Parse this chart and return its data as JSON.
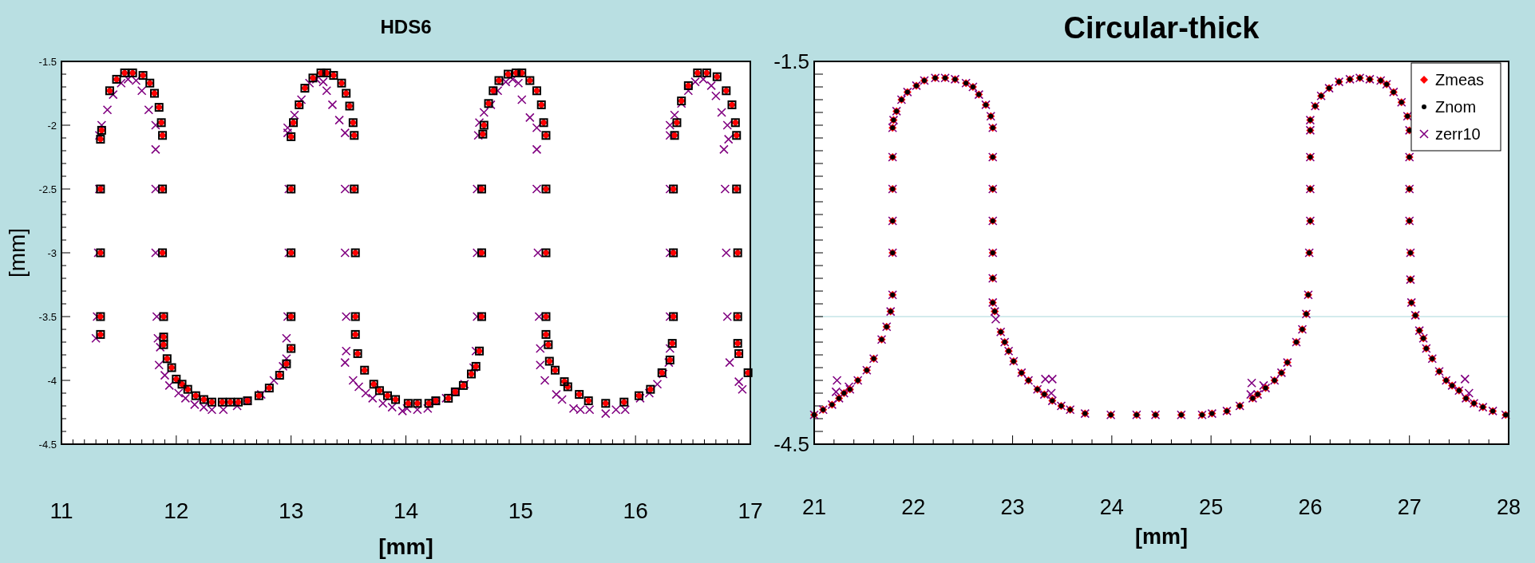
{
  "chart_data": [
    {
      "type": "scatter",
      "title": "HDS6",
      "xlabel": "[mm]",
      "ylabel": "[mm]",
      "xlim": [
        11,
        17
      ],
      "ylim": [
        -4.5,
        -1.5
      ],
      "xticks": [
        11,
        {
          "value": 11.1,
          "label": null
        },
        {
          "value": 11.2,
          "label": null
        },
        {
          "value": 11.3,
          "label": null
        },
        {
          "value": 11.4,
          "label": null
        },
        {
          "value": 11.5,
          "label": null
        },
        {
          "value": 11.6,
          "label": null
        },
        {
          "value": 11.7,
          "label": null
        },
        {
          "value": 11.8,
          "label": null
        },
        {
          "value": 11.9,
          "label": null
        },
        12,
        {
          "value": 12.1,
          "label": null
        },
        {
          "value": 12.2,
          "label": null
        },
        {
          "value": 12.3,
          "label": null
        },
        {
          "value": 12.4,
          "label": null
        },
        {
          "value": 12.5,
          "label": null
        },
        {
          "value": 12.6,
          "label": null
        },
        {
          "value": 12.7,
          "label": null
        },
        {
          "value": 12.8,
          "label": null
        },
        {
          "value": 12.9,
          "label": null
        },
        13,
        {
          "value": 13.1,
          "label": null
        },
        {
          "value": 13.2,
          "label": null
        },
        {
          "value": 13.3,
          "label": null
        },
        {
          "value": 13.4,
          "label": null
        },
        {
          "value": 13.5,
          "label": null
        },
        {
          "value": 13.6,
          "label": null
        },
        {
          "value": 13.7,
          "label": null
        },
        {
          "value": 13.8,
          "label": null
        },
        {
          "value": 13.9,
          "label": null
        },
        14,
        {
          "value": 14.1,
          "label": null
        },
        {
          "value": 14.2,
          "label": null
        },
        {
          "value": 14.3,
          "label": null
        },
        {
          "value": 14.4,
          "label": null
        },
        {
          "value": 14.5,
          "label": null
        },
        {
          "value": 14.6,
          "label": null
        },
        {
          "value": 14.7,
          "label": null
        },
        {
          "value": 14.8,
          "label": null
        },
        {
          "value": 14.9,
          "label": null
        },
        15,
        {
          "value": 15.1,
          "label": null
        },
        {
          "value": 15.2,
          "label": null
        },
        {
          "value": 15.3,
          "label": null
        },
        {
          "value": 15.4,
          "label": null
        },
        {
          "value": 15.5,
          "label": null
        },
        {
          "value": 15.6,
          "label": null
        },
        {
          "value": 15.7,
          "label": null
        },
        {
          "value": 15.8,
          "label": null
        },
        {
          "value": 15.9,
          "label": null
        },
        16,
        {
          "value": 16.1,
          "label": null
        },
        {
          "value": 16.2,
          "label": null
        },
        {
          "value": 16.3,
          "label": null
        },
        {
          "value": 16.4,
          "label": null
        },
        {
          "value": 16.5,
          "label": null
        },
        {
          "value": 16.6,
          "label": null
        },
        {
          "value": 16.7,
          "label": null
        },
        {
          "value": 16.8,
          "label": null
        },
        {
          "value": 16.9,
          "label": null
        },
        17
      ],
      "yticks": [
        -4.5,
        {
          "value": -4.4,
          "label": null
        },
        {
          "value": -4.3,
          "label": null
        },
        {
          "value": -4.2,
          "label": null
        },
        {
          "value": -4.1,
          "label": null
        },
        -4,
        {
          "value": -3.9,
          "label": null
        },
        {
          "value": -3.8,
          "label": null
        },
        {
          "value": -3.7,
          "label": null
        },
        {
          "value": -3.6,
          "label": null
        },
        -3.5,
        {
          "value": -3.4,
          "label": null
        },
        {
          "value": -3.3,
          "label": null
        },
        {
          "value": -3.2,
          "label": null
        },
        {
          "value": -3.1,
          "label": null
        },
        -3,
        {
          "value": -2.9,
          "label": null
        },
        {
          "value": -2.8,
          "label": null
        },
        {
          "value": -2.7,
          "label": null
        },
        {
          "value": -2.6,
          "label": null
        },
        -2.5,
        {
          "value": -2.4,
          "label": null
        },
        {
          "value": -2.3,
          "label": null
        },
        {
          "value": -2.2,
          "label": null
        },
        {
          "value": -2.1,
          "label": null
        },
        -2,
        {
          "value": -1.9,
          "label": null
        },
        {
          "value": -1.8,
          "label": null
        },
        {
          "value": -1.7,
          "label": null
        },
        {
          "value": -1.6,
          "label": null
        },
        -1.5
      ],
      "grid": false,
      "legend": false,
      "series": [
        {
          "color": "#ff0000",
          "marker": "diamond",
          "x": [
            11.34,
            11.34,
            11.34,
            11.34,
            11.34,
            11.35,
            11.42,
            11.48,
            11.55,
            11.62,
            11.71,
            11.77,
            11.81,
            11.85,
            11.87,
            11.88,
            11.88,
            11.88,
            11.89,
            11.89,
            11.89,
            11.92,
            11.96,
            12.0,
            12.05,
            12.1,
            12.17,
            12.24,
            12.31,
            12.4,
            12.47,
            12.54,
            12.62,
            12.72,
            12.81,
            12.9,
            12.96,
            13.0,
            13.0,
            13.0,
            13.0,
            13.0,
            13.02,
            13.07,
            13.12,
            13.19,
            13.26,
            13.31,
            13.37,
            13.44,
            13.48,
            13.51,
            13.54,
            13.55,
            13.55,
            13.56,
            13.56,
            13.56,
            13.58,
            13.64,
            13.72,
            13.77,
            13.84,
            13.91,
            14.02,
            14.1,
            14.2,
            14.26,
            14.37,
            14.43,
            14.5,
            14.57,
            14.61,
            14.64,
            14.66,
            14.66,
            14.66,
            14.67,
            14.68,
            14.72,
            14.76,
            14.81,
            14.89,
            14.96,
            15.01,
            15.08,
            15.14,
            15.18,
            15.2,
            15.22,
            15.22,
            15.22,
            15.22,
            15.22,
            15.24,
            15.25,
            15.3,
            15.38,
            15.41,
            15.51,
            15.59,
            15.74,
            15.9,
            16.03,
            16.13,
            16.23,
            16.3,
            16.32,
            16.33,
            16.33,
            16.33,
            16.34,
            16.36,
            16.4,
            16.46,
            16.54,
            16.62,
            16.71,
            16.79,
            16.84,
            16.87,
            16.88,
            16.88,
            16.89,
            16.89,
            16.89,
            16.9,
            16.98
          ],
          "values": [
            -3.64,
            -3.5,
            -3.0,
            -2.5,
            -2.11,
            -2.04,
            -1.73,
            -1.64,
            -1.59,
            -1.59,
            -1.61,
            -1.67,
            -1.75,
            -1.86,
            -1.98,
            -2.08,
            -2.5,
            -3.0,
            -3.5,
            -3.66,
            -3.72,
            -3.83,
            -3.9,
            -3.99,
            -4.03,
            -4.07,
            -4.12,
            -4.15,
            -4.17,
            -4.17,
            -4.17,
            -4.17,
            -4.16,
            -4.12,
            -4.06,
            -3.96,
            -3.87,
            -3.75,
            -3.5,
            -3.0,
            -2.5,
            -2.09,
            -1.98,
            -1.84,
            -1.71,
            -1.63,
            -1.59,
            -1.59,
            -1.61,
            -1.67,
            -1.75,
            -1.85,
            -1.98,
            -2.08,
            -2.5,
            -3.0,
            -3.5,
            -3.64,
            -3.79,
            -3.92,
            -4.03,
            -4.08,
            -4.12,
            -4.15,
            -4.18,
            -4.18,
            -4.18,
            -4.16,
            -4.14,
            -4.09,
            -4.04,
            -3.95,
            -3.89,
            -3.77,
            -3.5,
            -3.0,
            -2.5,
            -2.07,
            -2.0,
            -1.83,
            -1.73,
            -1.65,
            -1.6,
            -1.59,
            -1.59,
            -1.65,
            -1.73,
            -1.84,
            -1.98,
            -2.08,
            -2.5,
            -3.0,
            -3.5,
            -3.64,
            -3.72,
            -3.85,
            -3.92,
            -4.01,
            -4.05,
            -4.11,
            -4.16,
            -4.18,
            -4.17,
            -4.12,
            -4.07,
            -3.94,
            -3.84,
            -3.71,
            -3.5,
            -3.0,
            -2.5,
            -2.08,
            -1.98,
            -1.81,
            -1.69,
            -1.59,
            -1.59,
            -1.62,
            -1.73,
            -1.84,
            -1.98,
            -2.08,
            -2.5,
            -3.0,
            -3.5,
            -3.71,
            -3.79,
            -3.94
          ]
        },
        {
          "color": "#000000",
          "marker": "square",
          "x": [
            11.34,
            11.34,
            11.34,
            11.34,
            11.34,
            11.35,
            11.42,
            11.48,
            11.55,
            11.62,
            11.71,
            11.77,
            11.81,
            11.85,
            11.87,
            11.88,
            11.88,
            11.88,
            11.89,
            11.89,
            11.89,
            11.92,
            11.96,
            12.0,
            12.05,
            12.1,
            12.17,
            12.24,
            12.31,
            12.4,
            12.47,
            12.54,
            12.62,
            12.72,
            12.81,
            12.9,
            12.96,
            13.0,
            13.0,
            13.0,
            13.0,
            13.0,
            13.02,
            13.07,
            13.12,
            13.19,
            13.26,
            13.31,
            13.37,
            13.44,
            13.48,
            13.51,
            13.54,
            13.55,
            13.55,
            13.56,
            13.56,
            13.56,
            13.58,
            13.64,
            13.72,
            13.77,
            13.84,
            13.91,
            14.02,
            14.1,
            14.2,
            14.26,
            14.37,
            14.43,
            14.5,
            14.57,
            14.61,
            14.64,
            14.66,
            14.66,
            14.66,
            14.67,
            14.68,
            14.72,
            14.76,
            14.81,
            14.89,
            14.96,
            15.01,
            15.08,
            15.14,
            15.18,
            15.2,
            15.22,
            15.22,
            15.22,
            15.22,
            15.22,
            15.24,
            15.25,
            15.3,
            15.38,
            15.41,
            15.51,
            15.59,
            15.74,
            15.9,
            16.03,
            16.13,
            16.23,
            16.3,
            16.32,
            16.33,
            16.33,
            16.33,
            16.34,
            16.36,
            16.4,
            16.46,
            16.54,
            16.62,
            16.71,
            16.79,
            16.84,
            16.87,
            16.88,
            16.88,
            16.89,
            16.89,
            16.89,
            16.9,
            16.98
          ],
          "values": [
            -3.64,
            -3.5,
            -3.0,
            -2.5,
            -2.11,
            -2.04,
            -1.73,
            -1.64,
            -1.59,
            -1.59,
            -1.61,
            -1.67,
            -1.75,
            -1.86,
            -1.98,
            -2.08,
            -2.5,
            -3.0,
            -3.5,
            -3.66,
            -3.72,
            -3.83,
            -3.9,
            -3.99,
            -4.03,
            -4.07,
            -4.12,
            -4.15,
            -4.17,
            -4.17,
            -4.17,
            -4.17,
            -4.16,
            -4.12,
            -4.06,
            -3.96,
            -3.87,
            -3.75,
            -3.5,
            -3.0,
            -2.5,
            -2.09,
            -1.98,
            -1.84,
            -1.71,
            -1.63,
            -1.59,
            -1.59,
            -1.61,
            -1.67,
            -1.75,
            -1.85,
            -1.98,
            -2.08,
            -2.5,
            -3.0,
            -3.5,
            -3.64,
            -3.79,
            -3.92,
            -4.03,
            -4.08,
            -4.12,
            -4.15,
            -4.18,
            -4.18,
            -4.18,
            -4.16,
            -4.14,
            -4.09,
            -4.04,
            -3.95,
            -3.89,
            -3.77,
            -3.5,
            -3.0,
            -2.5,
            -2.07,
            -2.0,
            -1.83,
            -1.73,
            -1.65,
            -1.6,
            -1.59,
            -1.59,
            -1.65,
            -1.73,
            -1.84,
            -1.98,
            -2.08,
            -2.5,
            -3.0,
            -3.5,
            -3.64,
            -3.72,
            -3.85,
            -3.92,
            -4.01,
            -4.05,
            -4.11,
            -4.16,
            -4.18,
            -4.17,
            -4.12,
            -4.07,
            -3.94,
            -3.84,
            -3.71,
            -3.5,
            -3.0,
            -2.5,
            -2.08,
            -1.98,
            -1.81,
            -1.69,
            -1.59,
            -1.59,
            -1.62,
            -1.73,
            -1.84,
            -1.98,
            -2.08,
            -2.5,
            -3.0,
            -3.5,
            -3.71,
            -3.79,
            -3.94
          ]
        },
        {
          "color": "#800080",
          "marker": "cross",
          "x": [
            11.3,
            11.31,
            11.32,
            11.33,
            11.33,
            11.35,
            11.4,
            11.45,
            11.52,
            11.58,
            11.65,
            11.7,
            11.76,
            11.82,
            11.82,
            11.82,
            11.82,
            11.83,
            11.84,
            11.86,
            11.85,
            11.9,
            11.94,
            12.02,
            12.08,
            12.16,
            12.24,
            12.31,
            12.41,
            12.53,
            12.62,
            12.74,
            12.85,
            12.93,
            12.96,
            12.96,
            12.97,
            12.98,
            12.98,
            12.97,
            12.97,
            13.03,
            13.09,
            13.16,
            13.22,
            13.28,
            13.31,
            13.36,
            13.42,
            13.47,
            13.47,
            13.47,
            13.48,
            13.48,
            13.47,
            13.54,
            13.59,
            13.65,
            13.71,
            13.8,
            13.88,
            13.97,
            14.01,
            14.1,
            14.19,
            14.26,
            14.35,
            14.43,
            14.51,
            14.59,
            14.61,
            14.62,
            14.62,
            14.62,
            14.63,
            14.64,
            14.68,
            14.74,
            14.8,
            14.87,
            14.93,
            14.98,
            15.01,
            15.08,
            15.14,
            15.14,
            15.14,
            15.15,
            15.16,
            15.17,
            15.17,
            15.21,
            15.31,
            15.36,
            15.46,
            15.52,
            15.6,
            15.74,
            15.83,
            15.91,
            16.04,
            16.12,
            16.19,
            16.24,
            16.29,
            16.3,
            16.3,
            16.3,
            16.3,
            16.3,
            16.3,
            16.34,
            16.4,
            16.46,
            16.52,
            16.59,
            16.66,
            16.7,
            16.75,
            16.8,
            16.81,
            16.77,
            16.78,
            16.79,
            16.8,
            16.82,
            16.9,
            16.93
          ],
          "values": [
            -3.67,
            -3.5,
            -3.0,
            -2.5,
            -2.08,
            -2.0,
            -1.88,
            -1.76,
            -1.67,
            -1.64,
            -1.65,
            -1.73,
            -1.88,
            -2.0,
            -2.19,
            -2.5,
            -3.0,
            -3.5,
            -3.67,
            -3.74,
            -3.88,
            -3.96,
            -4.04,
            -4.1,
            -4.14,
            -4.19,
            -4.21,
            -4.23,
            -4.23,
            -4.2,
            -4.16,
            -4.11,
            -4.0,
            -3.89,
            -3.83,
            -3.67,
            -3.5,
            -3.0,
            -2.5,
            -2.06,
            -2.02,
            -1.92,
            -1.8,
            -1.67,
            -1.64,
            -1.66,
            -1.73,
            -1.84,
            -1.96,
            -2.06,
            -2.5,
            -3.0,
            -3.5,
            -3.77,
            -3.86,
            -4.0,
            -4.05,
            -4.1,
            -4.14,
            -4.18,
            -4.21,
            -4.24,
            -4.22,
            -4.23,
            -4.22,
            -4.16,
            -4.14,
            -4.09,
            -4.03,
            -3.9,
            -3.77,
            -3.5,
            -3.0,
            -2.5,
            -2.08,
            -1.98,
            -1.9,
            -1.84,
            -1.73,
            -1.66,
            -1.64,
            -1.67,
            -1.8,
            -1.94,
            -2.02,
            -2.19,
            -2.5,
            -3.0,
            -3.5,
            -3.75,
            -3.88,
            -4.0,
            -4.11,
            -4.15,
            -4.22,
            -4.23,
            -4.23,
            -4.26,
            -4.23,
            -4.23,
            -4.14,
            -4.1,
            -4.03,
            -3.95,
            -3.86,
            -3.75,
            -3.5,
            -3.0,
            -2.5,
            -2.08,
            -2.0,
            -1.92,
            -1.83,
            -1.73,
            -1.66,
            -1.64,
            -1.69,
            -1.77,
            -1.9,
            -2.0,
            -2.11,
            -2.19,
            -2.5,
            -3.0,
            -3.5,
            -3.86,
            -4.01,
            -4.07
          ]
        }
      ]
    },
    {
      "type": "scatter",
      "title": "Circular-thick",
      "xlabel": "[mm]",
      "xlim": [
        21,
        28
      ],
      "ylim": [
        -4.5,
        -1.5
      ],
      "xticks": [
        21,
        {
          "value": 21.2,
          "label": null
        },
        {
          "value": 21.4,
          "label": null
        },
        {
          "value": 21.6,
          "label": null
        },
        {
          "value": 21.8,
          "label": null
        },
        22,
        {
          "value": 22.2,
          "label": null
        },
        {
          "value": 22.4,
          "label": null
        },
        {
          "value": 22.6,
          "label": null
        },
        {
          "value": 22.8,
          "label": null
        },
        23,
        {
          "value": 23.2,
          "label": null
        },
        {
          "value": 23.4,
          "label": null
        },
        {
          "value": 23.6,
          "label": null
        },
        {
          "value": 23.8,
          "label": null
        },
        24,
        {
          "value": 24.2,
          "label": null
        },
        {
          "value": 24.4,
          "label": null
        },
        {
          "value": 24.6,
          "label": null
        },
        {
          "value": 24.8,
          "label": null
        },
        25,
        {
          "value": 25.2,
          "label": null
        },
        {
          "value": 25.4,
          "label": null
        },
        {
          "value": 25.6,
          "label": null
        },
        {
          "value": 25.8,
          "label": null
        },
        26,
        {
          "value": 26.2,
          "label": null
        },
        {
          "value": 26.4,
          "label": null
        },
        {
          "value": 26.6,
          "label": null
        },
        {
          "value": 26.8,
          "label": null
        },
        27,
        {
          "value": 27.2,
          "label": null
        },
        {
          "value": 27.4,
          "label": null
        },
        {
          "value": 27.6,
          "label": null
        },
        {
          "value": 27.8,
          "label": null
        },
        28
      ],
      "yticks": [
        -4.5,
        {
          "value": -4.4,
          "label": null
        },
        {
          "value": -4.3,
          "label": null
        },
        {
          "value": -4.2,
          "label": null
        },
        {
          "value": -4.1,
          "label": null
        },
        {
          "value": -4,
          "label": null
        },
        {
          "value": -3.9,
          "label": null
        },
        {
          "value": -3.8,
          "label": null
        },
        {
          "value": -3.7,
          "label": null
        },
        {
          "value": -3.6,
          "label": null
        },
        {
          "value": -3.5,
          "label": null
        },
        {
          "value": -3.4,
          "label": null
        },
        {
          "value": -3.3,
          "label": null
        },
        {
          "value": -3.2,
          "label": null
        },
        {
          "value": -3.1,
          "label": null
        },
        {
          "value": -3,
          "label": null
        },
        {
          "value": -2.9,
          "label": null
        },
        {
          "value": -2.8,
          "label": null
        },
        {
          "value": -2.7,
          "label": null
        },
        {
          "value": -2.6,
          "label": null
        },
        {
          "value": -2.5,
          "label": null
        },
        {
          "value": -2.4,
          "label": null
        },
        {
          "value": -2.3,
          "label": null
        },
        {
          "value": -2.2,
          "label": null
        },
        {
          "value": -2.1,
          "label": null
        },
        {
          "value": -2,
          "label": null
        },
        {
          "value": -1.9,
          "label": null
        },
        {
          "value": -1.8,
          "label": null
        },
        {
          "value": -1.7,
          "label": null
        },
        {
          "value": -1.6,
          "label": null
        },
        -1.5
      ],
      "grid": false,
      "legend": "top right",
      "ref_lines": [
        {
          "axis": "y",
          "value": -3.5,
          "color": "#a8d8dc"
        }
      ],
      "series": [
        {
          "name": "Zmeas",
          "color": "#ff0000",
          "marker": "diamond",
          "x": [
            21.0,
            21.09,
            21.18,
            21.25,
            21.3,
            21.36,
            21.44,
            21.53,
            21.6,
            21.68,
            21.73,
            21.77,
            21.79,
            21.79,
            21.79,
            21.79,
            21.79,
            21.79,
            21.8,
            21.83,
            21.88,
            21.94,
            22.03,
            22.11,
            22.22,
            22.32,
            22.42,
            22.53,
            22.6,
            22.66,
            22.73,
            22.78,
            22.8,
            22.8,
            22.8,
            22.8,
            22.8,
            22.8,
            22.8,
            22.82,
            22.88,
            22.92,
            22.96,
            23.01,
            23.09,
            23.16,
            23.25,
            23.32,
            23.4,
            23.49,
            23.58,
            23.73,
            23.99,
            24.25,
            24.44,
            24.7,
            24.91,
            25.01,
            25.16,
            25.29,
            25.42,
            25.47,
            25.55,
            25.64,
            25.71,
            25.77,
            25.86,
            25.92,
            25.96,
            25.98,
            25.99,
            26.0,
            26.0,
            26.0,
            26.0,
            26.0,
            26.05,
            26.11,
            26.19,
            26.29,
            26.4,
            26.5,
            26.6,
            26.71,
            26.77,
            26.84,
            26.92,
            26.98,
            27.0,
            27.0,
            27.0,
            27.0,
            27.01,
            27.01,
            27.02,
            27.06,
            27.1,
            27.14,
            27.17,
            27.23,
            27.3,
            27.37,
            27.43,
            27.5,
            27.57,
            27.65,
            27.74,
            27.84,
            27.97
          ],
          "values": [
            -4.27,
            -4.23,
            -4.19,
            -4.14,
            -4.1,
            -4.07,
            -4.0,
            -3.92,
            -3.83,
            -3.68,
            -3.58,
            -3.46,
            -3.33,
            -3.0,
            -2.75,
            -2.5,
            -2.25,
            -2.02,
            -1.96,
            -1.89,
            -1.8,
            -1.74,
            -1.69,
            -1.65,
            -1.63,
            -1.63,
            -1.64,
            -1.67,
            -1.7,
            -1.76,
            -1.84,
            -1.93,
            -2.02,
            -2.25,
            -2.5,
            -2.75,
            -3.0,
            -3.2,
            -3.39,
            -3.46,
            -3.62,
            -3.7,
            -3.77,
            -3.85,
            -3.94,
            -4.0,
            -4.07,
            -4.11,
            -4.16,
            -4.2,
            -4.23,
            -4.26,
            -4.27,
            -4.27,
            -4.27,
            -4.27,
            -4.27,
            -4.26,
            -4.24,
            -4.2,
            -4.14,
            -4.11,
            -4.06,
            -4.0,
            -3.94,
            -3.86,
            -3.7,
            -3.6,
            -3.48,
            -3.33,
            -3.0,
            -2.75,
            -2.5,
            -2.25,
            -2.04,
            -1.96,
            -1.85,
            -1.77,
            -1.71,
            -1.66,
            -1.64,
            -1.63,
            -1.64,
            -1.65,
            -1.68,
            -1.74,
            -1.82,
            -1.93,
            -2.04,
            -2.25,
            -2.5,
            -2.75,
            -3.0,
            -3.21,
            -3.39,
            -3.49,
            -3.61,
            -3.67,
            -3.75,
            -3.83,
            -3.93,
            -4.0,
            -4.04,
            -4.08,
            -4.14,
            -4.18,
            -4.21,
            -4.24,
            -4.27
          ]
        },
        {
          "name": "Znom",
          "color": "#000000",
          "marker": "circle",
          "x": [
            21.0,
            21.09,
            21.18,
            21.25,
            21.3,
            21.36,
            21.44,
            21.53,
            21.6,
            21.68,
            21.73,
            21.77,
            21.79,
            21.79,
            21.79,
            21.79,
            21.79,
            21.79,
            21.8,
            21.83,
            21.88,
            21.94,
            22.03,
            22.11,
            22.22,
            22.32,
            22.42,
            22.53,
            22.6,
            22.66,
            22.73,
            22.78,
            22.8,
            22.8,
            22.8,
            22.8,
            22.8,
            22.8,
            22.8,
            22.82,
            22.88,
            22.92,
            22.96,
            23.01,
            23.09,
            23.16,
            23.25,
            23.32,
            23.4,
            23.49,
            23.58,
            23.73,
            23.99,
            24.25,
            24.44,
            24.7,
            24.91,
            25.01,
            25.16,
            25.29,
            25.42,
            25.47,
            25.55,
            25.64,
            25.71,
            25.77,
            25.86,
            25.92,
            25.96,
            25.98,
            25.99,
            26.0,
            26.0,
            26.0,
            26.0,
            26.0,
            26.05,
            26.11,
            26.19,
            26.29,
            26.4,
            26.5,
            26.6,
            26.71,
            26.77,
            26.84,
            26.92,
            26.98,
            27.0,
            27.0,
            27.0,
            27.0,
            27.01,
            27.01,
            27.02,
            27.06,
            27.1,
            27.14,
            27.17,
            27.23,
            27.3,
            27.37,
            27.43,
            27.5,
            27.57,
            27.65,
            27.74,
            27.84,
            27.97
          ],
          "values": [
            -4.27,
            -4.23,
            -4.19,
            -4.14,
            -4.1,
            -4.07,
            -4.0,
            -3.92,
            -3.83,
            -3.68,
            -3.58,
            -3.46,
            -3.33,
            -3.0,
            -2.75,
            -2.5,
            -2.25,
            -2.02,
            -1.96,
            -1.89,
            -1.8,
            -1.74,
            -1.69,
            -1.65,
            -1.63,
            -1.63,
            -1.64,
            -1.67,
            -1.7,
            -1.76,
            -1.84,
            -1.93,
            -2.02,
            -2.25,
            -2.5,
            -2.75,
            -3.0,
            -3.2,
            -3.39,
            -3.46,
            -3.62,
            -3.7,
            -3.77,
            -3.85,
            -3.94,
            -4.0,
            -4.07,
            -4.11,
            -4.16,
            -4.2,
            -4.23,
            -4.26,
            -4.27,
            -4.27,
            -4.27,
            -4.27,
            -4.27,
            -4.26,
            -4.24,
            -4.2,
            -4.14,
            -4.11,
            -4.06,
            -4.0,
            -3.94,
            -3.86,
            -3.7,
            -3.6,
            -3.48,
            -3.33,
            -3.0,
            -2.75,
            -2.5,
            -2.25,
            -2.04,
            -1.96,
            -1.85,
            -1.77,
            -1.71,
            -1.66,
            -1.64,
            -1.63,
            -1.64,
            -1.65,
            -1.68,
            -1.74,
            -1.82,
            -1.93,
            -2.04,
            -2.25,
            -2.5,
            -2.75,
            -3.0,
            -3.21,
            -3.39,
            -3.49,
            -3.61,
            -3.67,
            -3.75,
            -3.83,
            -3.93,
            -4.0,
            -4.04,
            -4.08,
            -4.14,
            -4.18,
            -4.21,
            -4.24,
            -4.27
          ]
        },
        {
          "name": "zerr10",
          "color": "#800080",
          "marker": "cross",
          "x": [
            21.0,
            21.09,
            21.18,
            21.25,
            21.3,
            21.36,
            21.44,
            21.53,
            21.6,
            21.68,
            21.73,
            21.77,
            21.79,
            21.79,
            21.79,
            21.79,
            21.79,
            21.79,
            21.8,
            21.83,
            21.88,
            21.94,
            22.03,
            22.11,
            22.22,
            22.32,
            22.42,
            22.53,
            22.6,
            22.66,
            22.73,
            22.78,
            22.8,
            22.8,
            22.8,
            22.8,
            22.8,
            22.8,
            22.8,
            22.82,
            22.88,
            22.92,
            22.96,
            23.01,
            23.09,
            23.16,
            23.25,
            23.32,
            23.4,
            23.49,
            23.58,
            23.73,
            23.99,
            24.25,
            24.44,
            24.7,
            24.91,
            25.01,
            25.16,
            25.29,
            25.42,
            25.47,
            25.55,
            25.64,
            25.71,
            25.77,
            25.86,
            25.92,
            25.96,
            25.98,
            25.99,
            26.0,
            26.0,
            26.0,
            26.0,
            26.0,
            26.05,
            26.11,
            26.19,
            26.29,
            26.4,
            26.5,
            26.6,
            26.71,
            26.77,
            26.84,
            26.92,
            26.98,
            27.0,
            27.0,
            27.0,
            27.0,
            27.01,
            27.01,
            27.02,
            27.06,
            27.1,
            27.14,
            27.17,
            27.23,
            27.3,
            27.37,
            27.43,
            27.5,
            27.57,
            27.65,
            27.74,
            27.84,
            27.97,
            21.23,
            21.22,
            21.35,
            23.33,
            23.4,
            23.39,
            25.41,
            25.4,
            25.53,
            27.56,
            27.6,
            22.83
          ],
          "values": [
            -4.27,
            -4.23,
            -4.19,
            -4.14,
            -4.1,
            -4.07,
            -4.0,
            -3.92,
            -3.83,
            -3.68,
            -3.58,
            -3.46,
            -3.33,
            -3.0,
            -2.75,
            -2.5,
            -2.25,
            -2.02,
            -1.96,
            -1.89,
            -1.8,
            -1.74,
            -1.69,
            -1.65,
            -1.63,
            -1.63,
            -1.64,
            -1.67,
            -1.7,
            -1.76,
            -1.84,
            -1.93,
            -2.02,
            -2.25,
            -2.5,
            -2.75,
            -3.0,
            -3.2,
            -3.39,
            -3.46,
            -3.62,
            -3.7,
            -3.77,
            -3.85,
            -3.94,
            -4.0,
            -4.07,
            -4.11,
            -4.16,
            -4.2,
            -4.23,
            -4.26,
            -4.27,
            -4.27,
            -4.27,
            -4.27,
            -4.27,
            -4.26,
            -4.24,
            -4.2,
            -4.14,
            -4.11,
            -4.06,
            -4.0,
            -3.94,
            -3.86,
            -3.7,
            -3.6,
            -3.48,
            -3.33,
            -3.0,
            -2.75,
            -2.5,
            -2.25,
            -2.04,
            -1.96,
            -1.85,
            -1.77,
            -1.71,
            -1.66,
            -1.64,
            -1.63,
            -1.64,
            -1.65,
            -1.68,
            -1.74,
            -1.82,
            -1.93,
            -2.04,
            -2.25,
            -2.5,
            -2.75,
            -3.0,
            -3.21,
            -3.39,
            -3.49,
            -3.61,
            -3.67,
            -3.75,
            -3.83,
            -3.93,
            -4.0,
            -4.04,
            -4.08,
            -4.14,
            -4.18,
            -4.21,
            -4.24,
            -4.27,
            -4.0,
            -4.09,
            -4.05,
            -3.99,
            -3.99,
            -4.1,
            -4.02,
            -4.11,
            -4.04,
            -3.99,
            -4.1,
            -3.52
          ]
        }
      ]
    }
  ]
}
